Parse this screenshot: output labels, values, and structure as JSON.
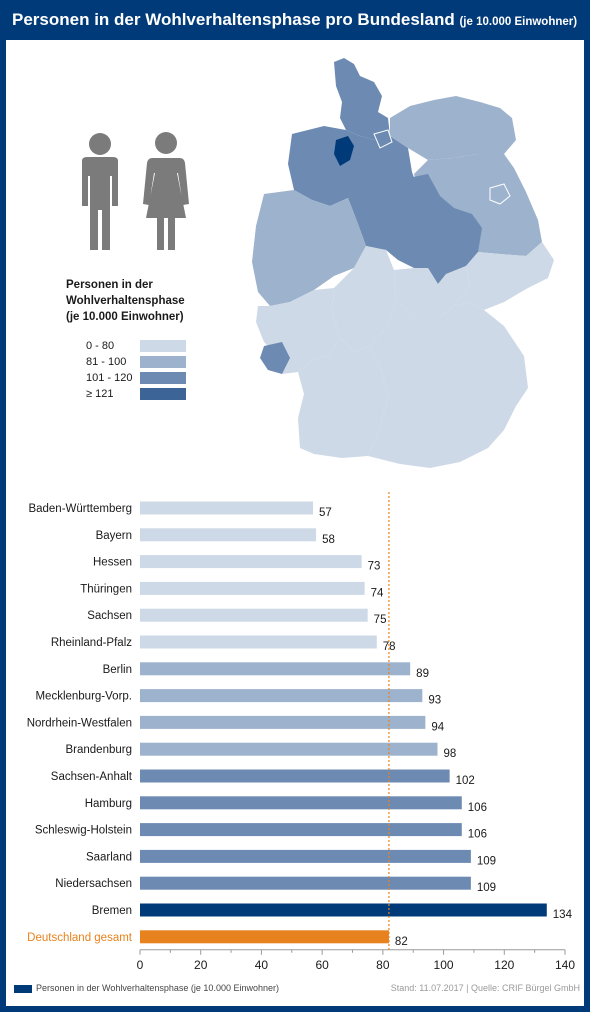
{
  "header": {
    "title": "Personen in der Wohlverhaltensphase pro Bundesland",
    "subtitle": "(je 10.000 Einwohner)"
  },
  "legend": {
    "title_lines": [
      "Personen in der",
      "Wohlverhaltensphase",
      "(je 10.000 Einwohner)"
    ],
    "items": [
      {
        "label": "0 -   80",
        "color": "#cdd9e6"
      },
      {
        "label": "81 - 100",
        "color": "#9db2cc"
      },
      {
        "label": "101 - 120",
        "color": "#6d8bb2"
      },
      {
        "label": "≥ 121",
        "color": "#3c6496"
      }
    ]
  },
  "colors": {
    "header_bg": "#003a78",
    "bremen": "#003a78",
    "germany_total": "#e8821e",
    "reference_line": "#e8821e",
    "people_icon": "#7b7b7b"
  },
  "icons": [
    "man-icon",
    "woman-icon",
    "germany-map-icon"
  ],
  "chart_data": {
    "type": "bar",
    "orientation": "horizontal",
    "categories": [
      "Baden-Württemberg",
      "Bayern",
      "Hessen",
      "Thüringen",
      "Sachsen",
      "Rheinland-Pfalz",
      "Berlin",
      "Mecklenburg-Vorp.",
      "Nordrhein-Westfalen",
      "Brandenburg",
      "Sachsen-Anhalt",
      "Hamburg",
      "Schleswig-Holstein",
      "Saarland",
      "Niedersachsen",
      "Bremen",
      "Deutschland gesamt"
    ],
    "values": [
      57,
      58,
      73,
      74,
      75,
      78,
      89,
      93,
      94,
      98,
      102,
      106,
      106,
      109,
      109,
      134,
      82
    ],
    "xlim": [
      0,
      140
    ],
    "xticks": [
      0,
      20,
      40,
      60,
      80,
      100,
      120,
      140
    ],
    "reference_value": 82,
    "grid": false,
    "series": [
      {
        "name": "Personen in der Wohlverhaltensphase (je 10.000 Einwohner)"
      }
    ]
  },
  "footer": {
    "series_label": "Personen in der Wohlverhaltensphase (je 10.000 Einwohner)",
    "source": "Stand: 11.07.2017 | Quelle: CRIF Bürgel GmbH"
  }
}
